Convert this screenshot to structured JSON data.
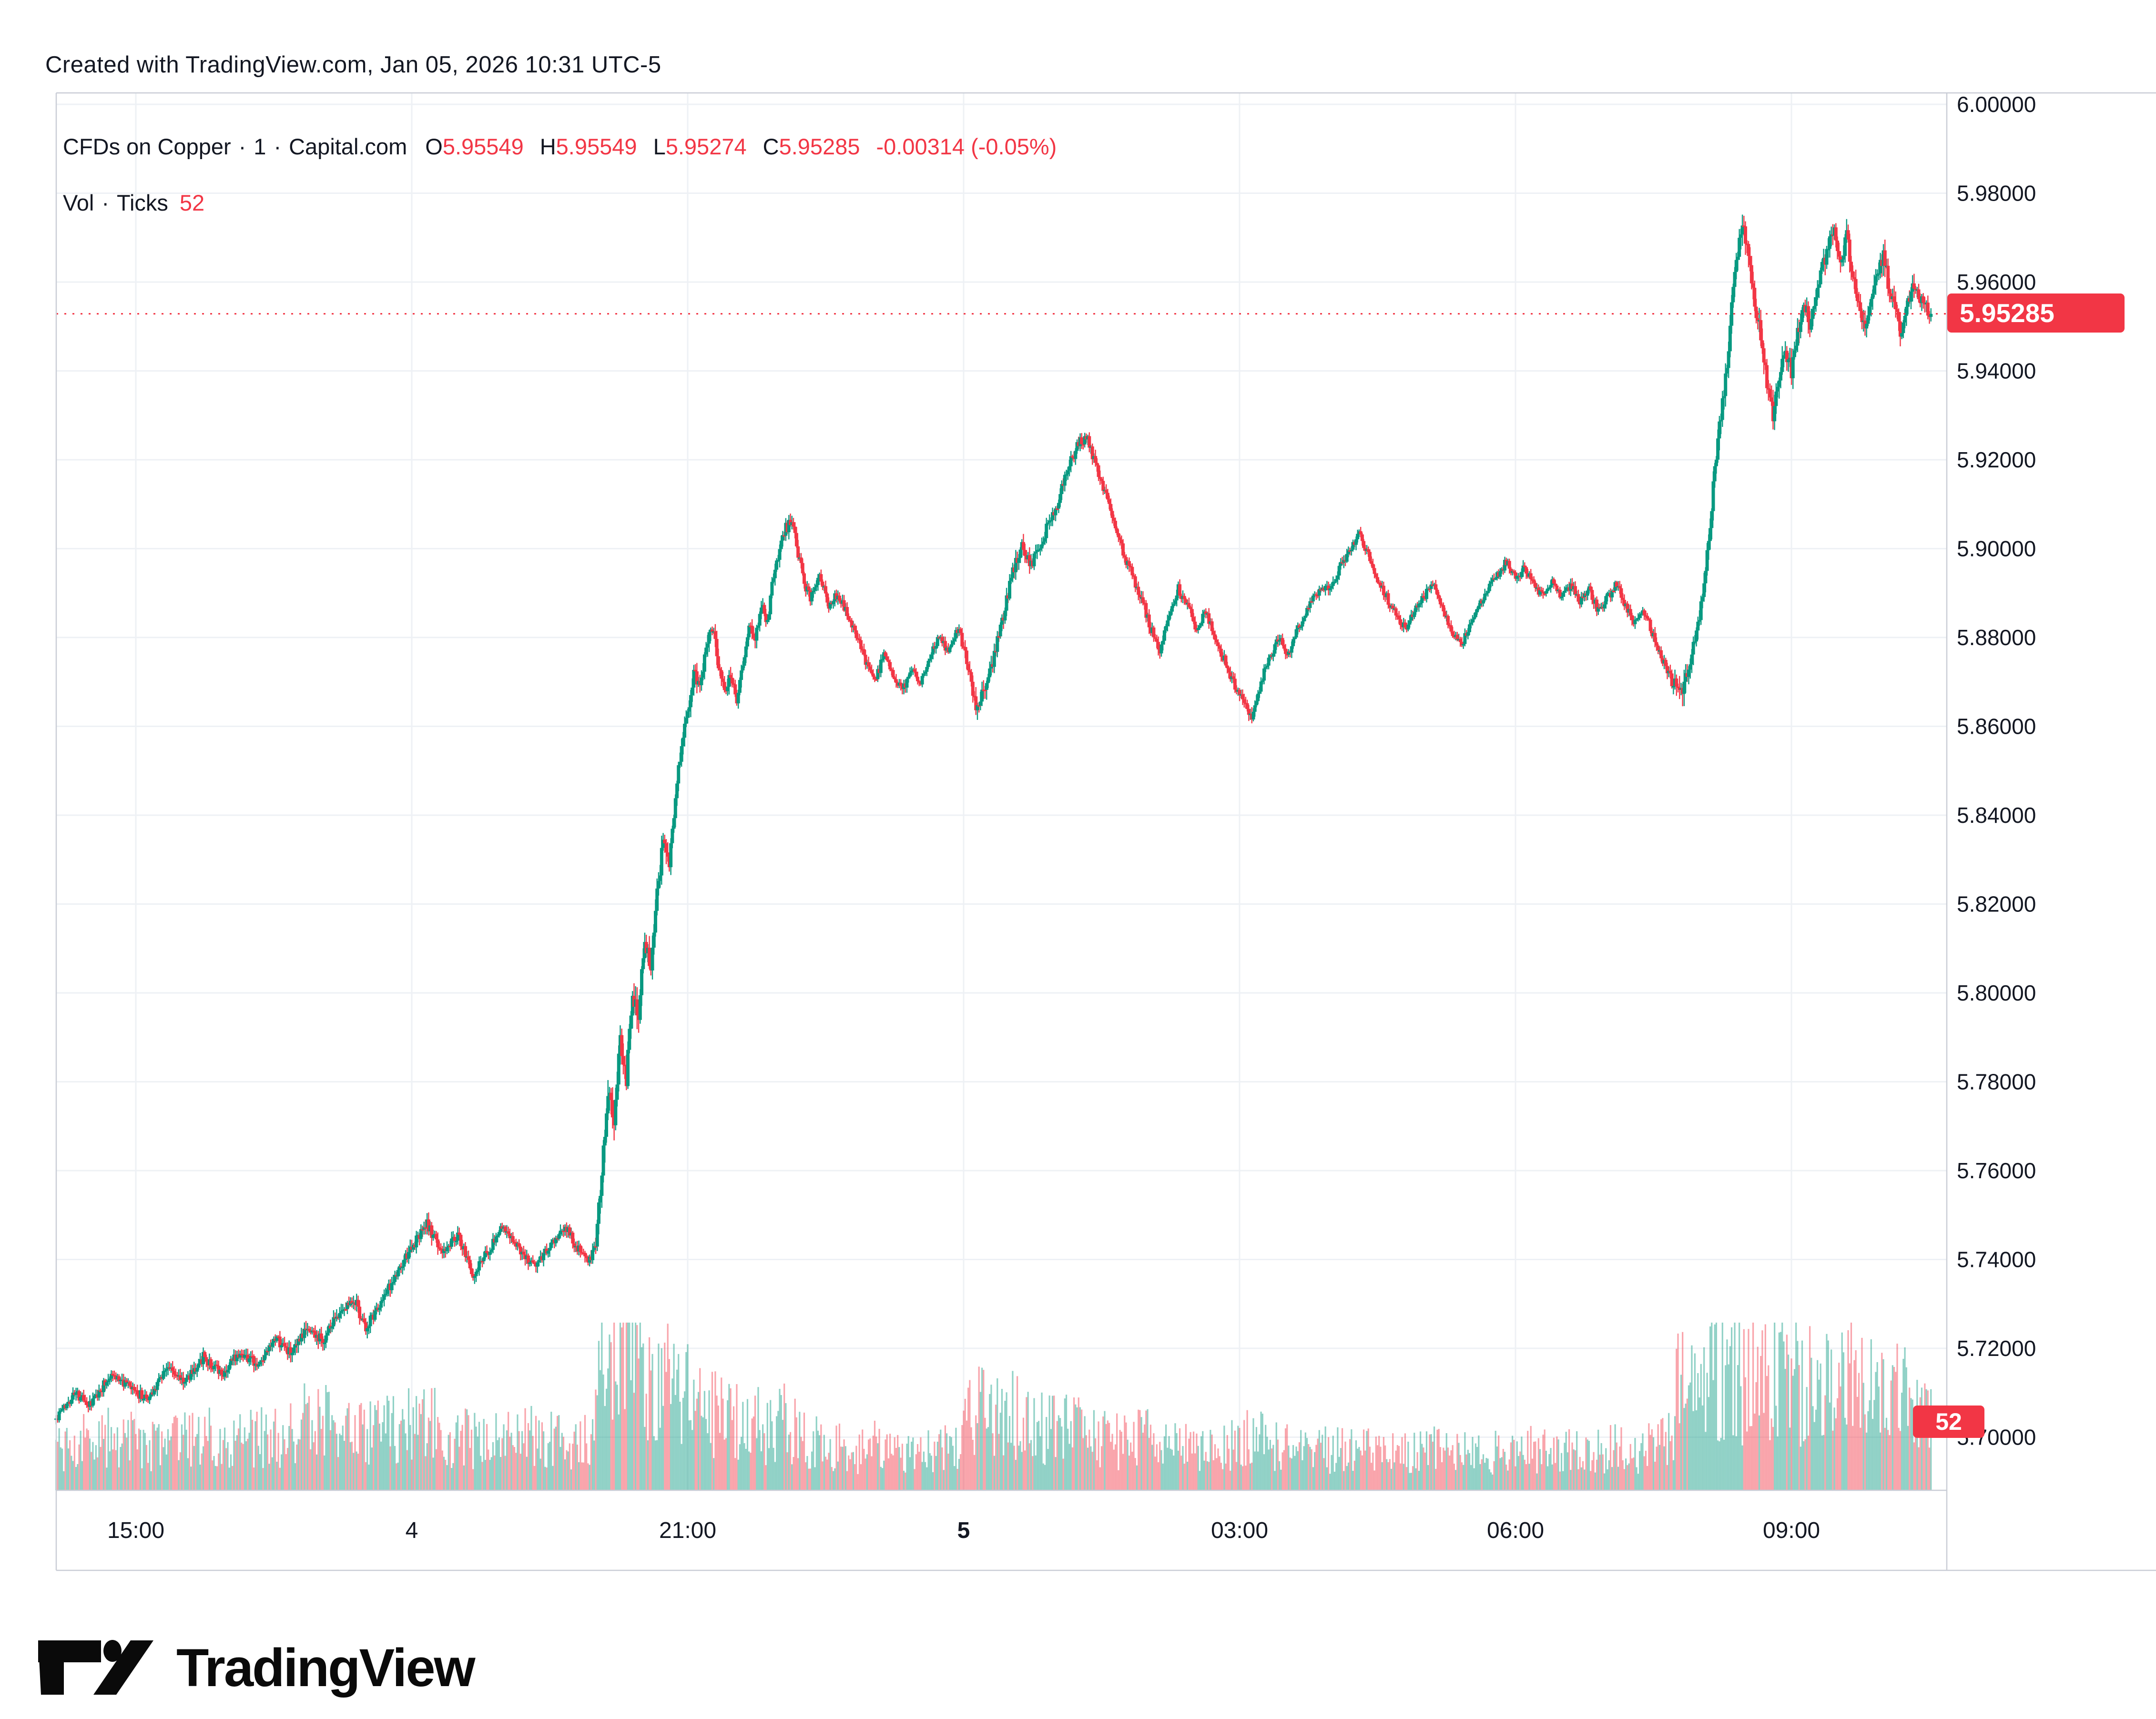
{
  "attribution": "Created with TradingView.com, Jan 05, 2026 10:31 UTC-5",
  "legend": {
    "symbol": "CFDs on Copper",
    "separator": "·",
    "interval": "1",
    "exchange": "Capital.com",
    "open_label": "O",
    "open": "5.95549",
    "high_label": "H",
    "high": "5.95549",
    "low_label": "L",
    "low": "5.95274",
    "close_label": "C",
    "close": "5.95285",
    "change": "-0.00314 (-0.05%)",
    "vol_label": "Vol",
    "vol_source": "Ticks",
    "vol_value": "52"
  },
  "badges": {
    "last_price": "5.95285",
    "last_volume": "52",
    "badge_color": "#F23645"
  },
  "logo": {
    "text": "TradingView"
  },
  "chart_data": {
    "type": "candlestick+volume",
    "title": "CFDs on Copper · 1 · Capital.com",
    "interval": "1 minute",
    "ohlc_last": {
      "o": 5.95549,
      "h": 5.95549,
      "l": 5.95274,
      "c": 5.95285,
      "change": -0.00314,
      "change_pct": -0.05
    },
    "last_volume_ticks": 52,
    "ylim": [
      5.688,
      6.001
    ],
    "price_axis_labels": [
      "6.00000",
      "5.98000",
      "5.96000",
      "5.94000",
      "5.92000",
      "5.90000",
      "5.88000",
      "5.86000",
      "5.84000",
      "5.82000",
      "5.80000",
      "5.78000",
      "5.76000",
      "5.74000",
      "5.72000",
      "5.70000"
    ],
    "price_axis_values": [
      6.0,
      5.98,
      5.96,
      5.94,
      5.92,
      5.9,
      5.88,
      5.86,
      5.84,
      5.82,
      5.8,
      5.78,
      5.76,
      5.74,
      5.72,
      5.7
    ],
    "time_axis_labels": [
      {
        "t": 60,
        "label": "15:00",
        "bold": false
      },
      {
        "t": 240,
        "label": "4",
        "bold": false
      },
      {
        "t": 420,
        "label": "21:00",
        "bold": false
      },
      {
        "t": 600,
        "label": "5",
        "bold": true
      },
      {
        "t": 780,
        "label": "03:00",
        "bold": false
      },
      {
        "t": 960,
        "label": "06:00",
        "bold": false
      },
      {
        "t": 1140,
        "label": "09:00",
        "bold": false
      }
    ],
    "time_origin": "minutes since Jan 4 14:00 (UTC-5); session spans Jan 4 14:08 to Jan 5 10:31",
    "price_anchors": [
      [
        8,
        5.704
      ],
      [
        20,
        5.71
      ],
      [
        30,
        5.707
      ],
      [
        44,
        5.7145
      ],
      [
        56,
        5.711
      ],
      [
        68,
        5.7085
      ],
      [
        80,
        5.716
      ],
      [
        92,
        5.7125
      ],
      [
        104,
        5.718
      ],
      [
        116,
        5.714
      ],
      [
        128,
        5.7195
      ],
      [
        140,
        5.716
      ],
      [
        152,
        5.722
      ],
      [
        162,
        5.7185
      ],
      [
        172,
        5.7245
      ],
      [
        182,
        5.7215
      ],
      [
        192,
        5.728
      ],
      [
        202,
        5.7315
      ],
      [
        210,
        5.7245
      ],
      [
        220,
        5.7305
      ],
      [
        230,
        5.7365
      ],
      [
        240,
        5.7425
      ],
      [
        250,
        5.748
      ],
      [
        260,
        5.7415
      ],
      [
        270,
        5.7455
      ],
      [
        280,
        5.7365
      ],
      [
        290,
        5.742
      ],
      [
        300,
        5.7475
      ],
      [
        310,
        5.7425
      ],
      [
        320,
        5.738
      ],
      [
        330,
        5.7435
      ],
      [
        340,
        5.7475
      ],
      [
        348,
        5.7425
      ],
      [
        356,
        5.7395
      ],
      [
        360,
        5.744
      ],
      [
        364,
        5.76
      ],
      [
        368,
        5.778
      ],
      [
        372,
        5.772
      ],
      [
        376,
        5.79
      ],
      [
        380,
        5.781
      ],
      [
        384,
        5.8
      ],
      [
        388,
        5.795
      ],
      [
        392,
        5.812
      ],
      [
        396,
        5.806
      ],
      [
        400,
        5.822
      ],
      [
        404,
        5.834
      ],
      [
        408,
        5.828
      ],
      [
        412,
        5.845
      ],
      [
        416,
        5.856
      ],
      [
        420,
        5.862
      ],
      [
        424,
        5.872
      ],
      [
        428,
        5.868
      ],
      [
        432,
        5.878
      ],
      [
        436,
        5.8825
      ],
      [
        440,
        5.874
      ],
      [
        444,
        5.868
      ],
      [
        448,
        5.872
      ],
      [
        452,
        5.866
      ],
      [
        456,
        5.874
      ],
      [
        460,
        5.883
      ],
      [
        464,
        5.879
      ],
      [
        468,
        5.8875
      ],
      [
        472,
        5.8835
      ],
      [
        476,
        5.894
      ],
      [
        480,
        5.9
      ],
      [
        484,
        5.9045
      ],
      [
        488,
        5.9065
      ],
      [
        492,
        5.899
      ],
      [
        496,
        5.8925
      ],
      [
        500,
        5.8885
      ],
      [
        506,
        5.8935
      ],
      [
        512,
        5.8875
      ],
      [
        518,
        5.89
      ],
      [
        524,
        5.8855
      ],
      [
        530,
        5.8805
      ],
      [
        536,
        5.8745
      ],
      [
        542,
        5.87
      ],
      [
        548,
        5.876
      ],
      [
        554,
        5.872
      ],
      [
        560,
        5.868
      ],
      [
        566,
        5.873
      ],
      [
        572,
        5.87
      ],
      [
        578,
        5.876
      ],
      [
        584,
        5.88
      ],
      [
        590,
        5.877
      ],
      [
        596,
        5.882
      ],
      [
        600,
        5.878
      ],
      [
        604,
        5.872
      ],
      [
        608,
        5.863
      ],
      [
        614,
        5.869
      ],
      [
        620,
        5.876
      ],
      [
        626,
        5.885
      ],
      [
        632,
        5.895
      ],
      [
        638,
        5.901
      ],
      [
        644,
        5.896
      ],
      [
        650,
        5.901
      ],
      [
        656,
        5.906
      ],
      [
        662,
        5.911
      ],
      [
        668,
        5.918
      ],
      [
        674,
        5.923
      ],
      [
        680,
        5.9255
      ],
      [
        686,
        5.919
      ],
      [
        692,
        5.913
      ],
      [
        698,
        5.906
      ],
      [
        704,
        5.899
      ],
      [
        710,
        5.894
      ],
      [
        716,
        5.889
      ],
      [
        722,
        5.882
      ],
      [
        728,
        5.877
      ],
      [
        734,
        5.885
      ],
      [
        740,
        5.891
      ],
      [
        746,
        5.887
      ],
      [
        752,
        5.882
      ],
      [
        758,
        5.886
      ],
      [
        764,
        5.88
      ],
      [
        770,
        5.875
      ],
      [
        776,
        5.87
      ],
      [
        782,
        5.866
      ],
      [
        788,
        5.862
      ],
      [
        794,
        5.87
      ],
      [
        800,
        5.876
      ],
      [
        806,
        5.88
      ],
      [
        812,
        5.876
      ],
      [
        818,
        5.882
      ],
      [
        824,
        5.886
      ],
      [
        830,
        5.89
      ],
      [
        840,
        5.892
      ],
      [
        846,
        5.896
      ],
      [
        852,
        5.9
      ],
      [
        858,
        5.903
      ],
      [
        864,
        5.899
      ],
      [
        870,
        5.893
      ],
      [
        876,
        5.889
      ],
      [
        882,
        5.885
      ],
      [
        888,
        5.882
      ],
      [
        894,
        5.886
      ],
      [
        900,
        5.889
      ],
      [
        906,
        5.892
      ],
      [
        912,
        5.887
      ],
      [
        918,
        5.882
      ],
      [
        924,
        5.878
      ],
      [
        930,
        5.882
      ],
      [
        936,
        5.887
      ],
      [
        942,
        5.891
      ],
      [
        948,
        5.894
      ],
      [
        954,
        5.897
      ],
      [
        960,
        5.893
      ],
      [
        966,
        5.896
      ],
      [
        972,
        5.892
      ],
      [
        978,
        5.889
      ],
      [
        984,
        5.893
      ],
      [
        990,
        5.889
      ],
      [
        996,
        5.892
      ],
      [
        1002,
        5.888
      ],
      [
        1008,
        5.891
      ],
      [
        1014,
        5.886
      ],
      [
        1020,
        5.889
      ],
      [
        1026,
        5.892
      ],
      [
        1032,
        5.887
      ],
      [
        1038,
        5.883
      ],
      [
        1044,
        5.886
      ],
      [
        1050,
        5.88
      ],
      [
        1056,
        5.875
      ],
      [
        1062,
        5.87
      ],
      [
        1068,
        5.868
      ],
      [
        1074,
        5.874
      ],
      [
        1080,
        5.885
      ],
      [
        1084,
        5.895
      ],
      [
        1088,
        5.91
      ],
      [
        1092,
        5.925
      ],
      [
        1096,
        5.935
      ],
      [
        1100,
        5.95
      ],
      [
        1104,
        5.965
      ],
      [
        1108,
        5.974
      ],
      [
        1112,
        5.965
      ],
      [
        1116,
        5.955
      ],
      [
        1120,
        5.948
      ],
      [
        1124,
        5.938
      ],
      [
        1128,
        5.93
      ],
      [
        1132,
        5.938
      ],
      [
        1136,
        5.945
      ],
      [
        1140,
        5.94
      ],
      [
        1144,
        5.948
      ],
      [
        1148,
        5.956
      ],
      [
        1152,
        5.95
      ],
      [
        1156,
        5.957
      ],
      [
        1160,
        5.963
      ],
      [
        1164,
        5.968
      ],
      [
        1168,
        5.972
      ],
      [
        1172,
        5.965
      ],
      [
        1176,
        5.97
      ],
      [
        1180,
        5.962
      ],
      [
        1184,
        5.955
      ],
      [
        1188,
        5.95
      ],
      [
        1192,
        5.956
      ],
      [
        1196,
        5.961
      ],
      [
        1200,
        5.966
      ],
      [
        1204,
        5.958
      ],
      [
        1208,
        5.953
      ],
      [
        1212,
        5.948
      ],
      [
        1216,
        5.955
      ],
      [
        1220,
        5.96
      ],
      [
        1224,
        5.956
      ],
      [
        1228,
        5.954
      ],
      [
        1231,
        5.95285
      ]
    ],
    "volume_anchors": [
      [
        8,
        32
      ],
      [
        40,
        40
      ],
      [
        70,
        36
      ],
      [
        100,
        42
      ],
      [
        130,
        38
      ],
      [
        160,
        44
      ],
      [
        172,
        58
      ],
      [
        200,
        42
      ],
      [
        225,
        46
      ],
      [
        250,
        52
      ],
      [
        270,
        40
      ],
      [
        290,
        36
      ],
      [
        310,
        42
      ],
      [
        330,
        38
      ],
      [
        350,
        34
      ],
      [
        358,
        42
      ],
      [
        362,
        75
      ],
      [
        366,
        125
      ],
      [
        370,
        112
      ],
      [
        376,
        102
      ],
      [
        382,
        96
      ],
      [
        388,
        100
      ],
      [
        394,
        88
      ],
      [
        400,
        82
      ],
      [
        406,
        90
      ],
      [
        412,
        78
      ],
      [
        418,
        72
      ],
      [
        424,
        74
      ],
      [
        430,
        64
      ],
      [
        436,
        58
      ],
      [
        442,
        62
      ],
      [
        448,
        55
      ],
      [
        454,
        50
      ],
      [
        460,
        46
      ],
      [
        466,
        50
      ],
      [
        472,
        44
      ],
      [
        478,
        48
      ],
      [
        484,
        52
      ],
      [
        490,
        44
      ],
      [
        496,
        38
      ],
      [
        504,
        36
      ],
      [
        512,
        34
      ],
      [
        520,
        32
      ],
      [
        530,
        30
      ],
      [
        540,
        34
      ],
      [
        555,
        30
      ],
      [
        570,
        28
      ],
      [
        585,
        30
      ],
      [
        598,
        36
      ],
      [
        604,
        60
      ],
      [
        610,
        72
      ],
      [
        618,
        62
      ],
      [
        626,
        56
      ],
      [
        634,
        58
      ],
      [
        642,
        52
      ],
      [
        650,
        48
      ],
      [
        660,
        45
      ],
      [
        670,
        47
      ],
      [
        680,
        43
      ],
      [
        690,
        40
      ],
      [
        705,
        37
      ],
      [
        720,
        41
      ],
      [
        735,
        35
      ],
      [
        750,
        33
      ],
      [
        765,
        31
      ],
      [
        780,
        37
      ],
      [
        790,
        41
      ],
      [
        800,
        35
      ],
      [
        815,
        31
      ],
      [
        830,
        29
      ],
      [
        845,
        33
      ],
      [
        860,
        31
      ],
      [
        875,
        29
      ],
      [
        890,
        27
      ],
      [
        905,
        31
      ],
      [
        920,
        29
      ],
      [
        935,
        27
      ],
      [
        950,
        29
      ],
      [
        965,
        33
      ],
      [
        980,
        29
      ],
      [
        995,
        31
      ],
      [
        1010,
        29
      ],
      [
        1025,
        33
      ],
      [
        1040,
        29
      ],
      [
        1052,
        35
      ],
      [
        1062,
        45
      ],
      [
        1068,
        92
      ],
      [
        1072,
        80
      ],
      [
        1078,
        72
      ],
      [
        1086,
        86
      ],
      [
        1092,
        93
      ],
      [
        1100,
        86
      ],
      [
        1110,
        81
      ],
      [
        1120,
        89
      ],
      [
        1132,
        96
      ],
      [
        1140,
        83
      ],
      [
        1150,
        79
      ],
      [
        1160,
        83
      ],
      [
        1170,
        76
      ],
      [
        1180,
        81
      ],
      [
        1190,
        73
      ],
      [
        1200,
        77
      ],
      [
        1210,
        71
      ],
      [
        1220,
        65
      ],
      [
        1231,
        52
      ]
    ],
    "current_price_line": 5.95285,
    "colors": {
      "up": "#089981",
      "down": "#F23645",
      "vol_up": "rgba(8,153,129,0.45)",
      "vol_down": "rgba(242,54,69,0.45)",
      "grid": "#eef1f5",
      "axis_line": "#c9cdd6",
      "text": "#131722",
      "accent_red": "#F23645"
    },
    "legend_position": "top-left",
    "grid": true
  }
}
